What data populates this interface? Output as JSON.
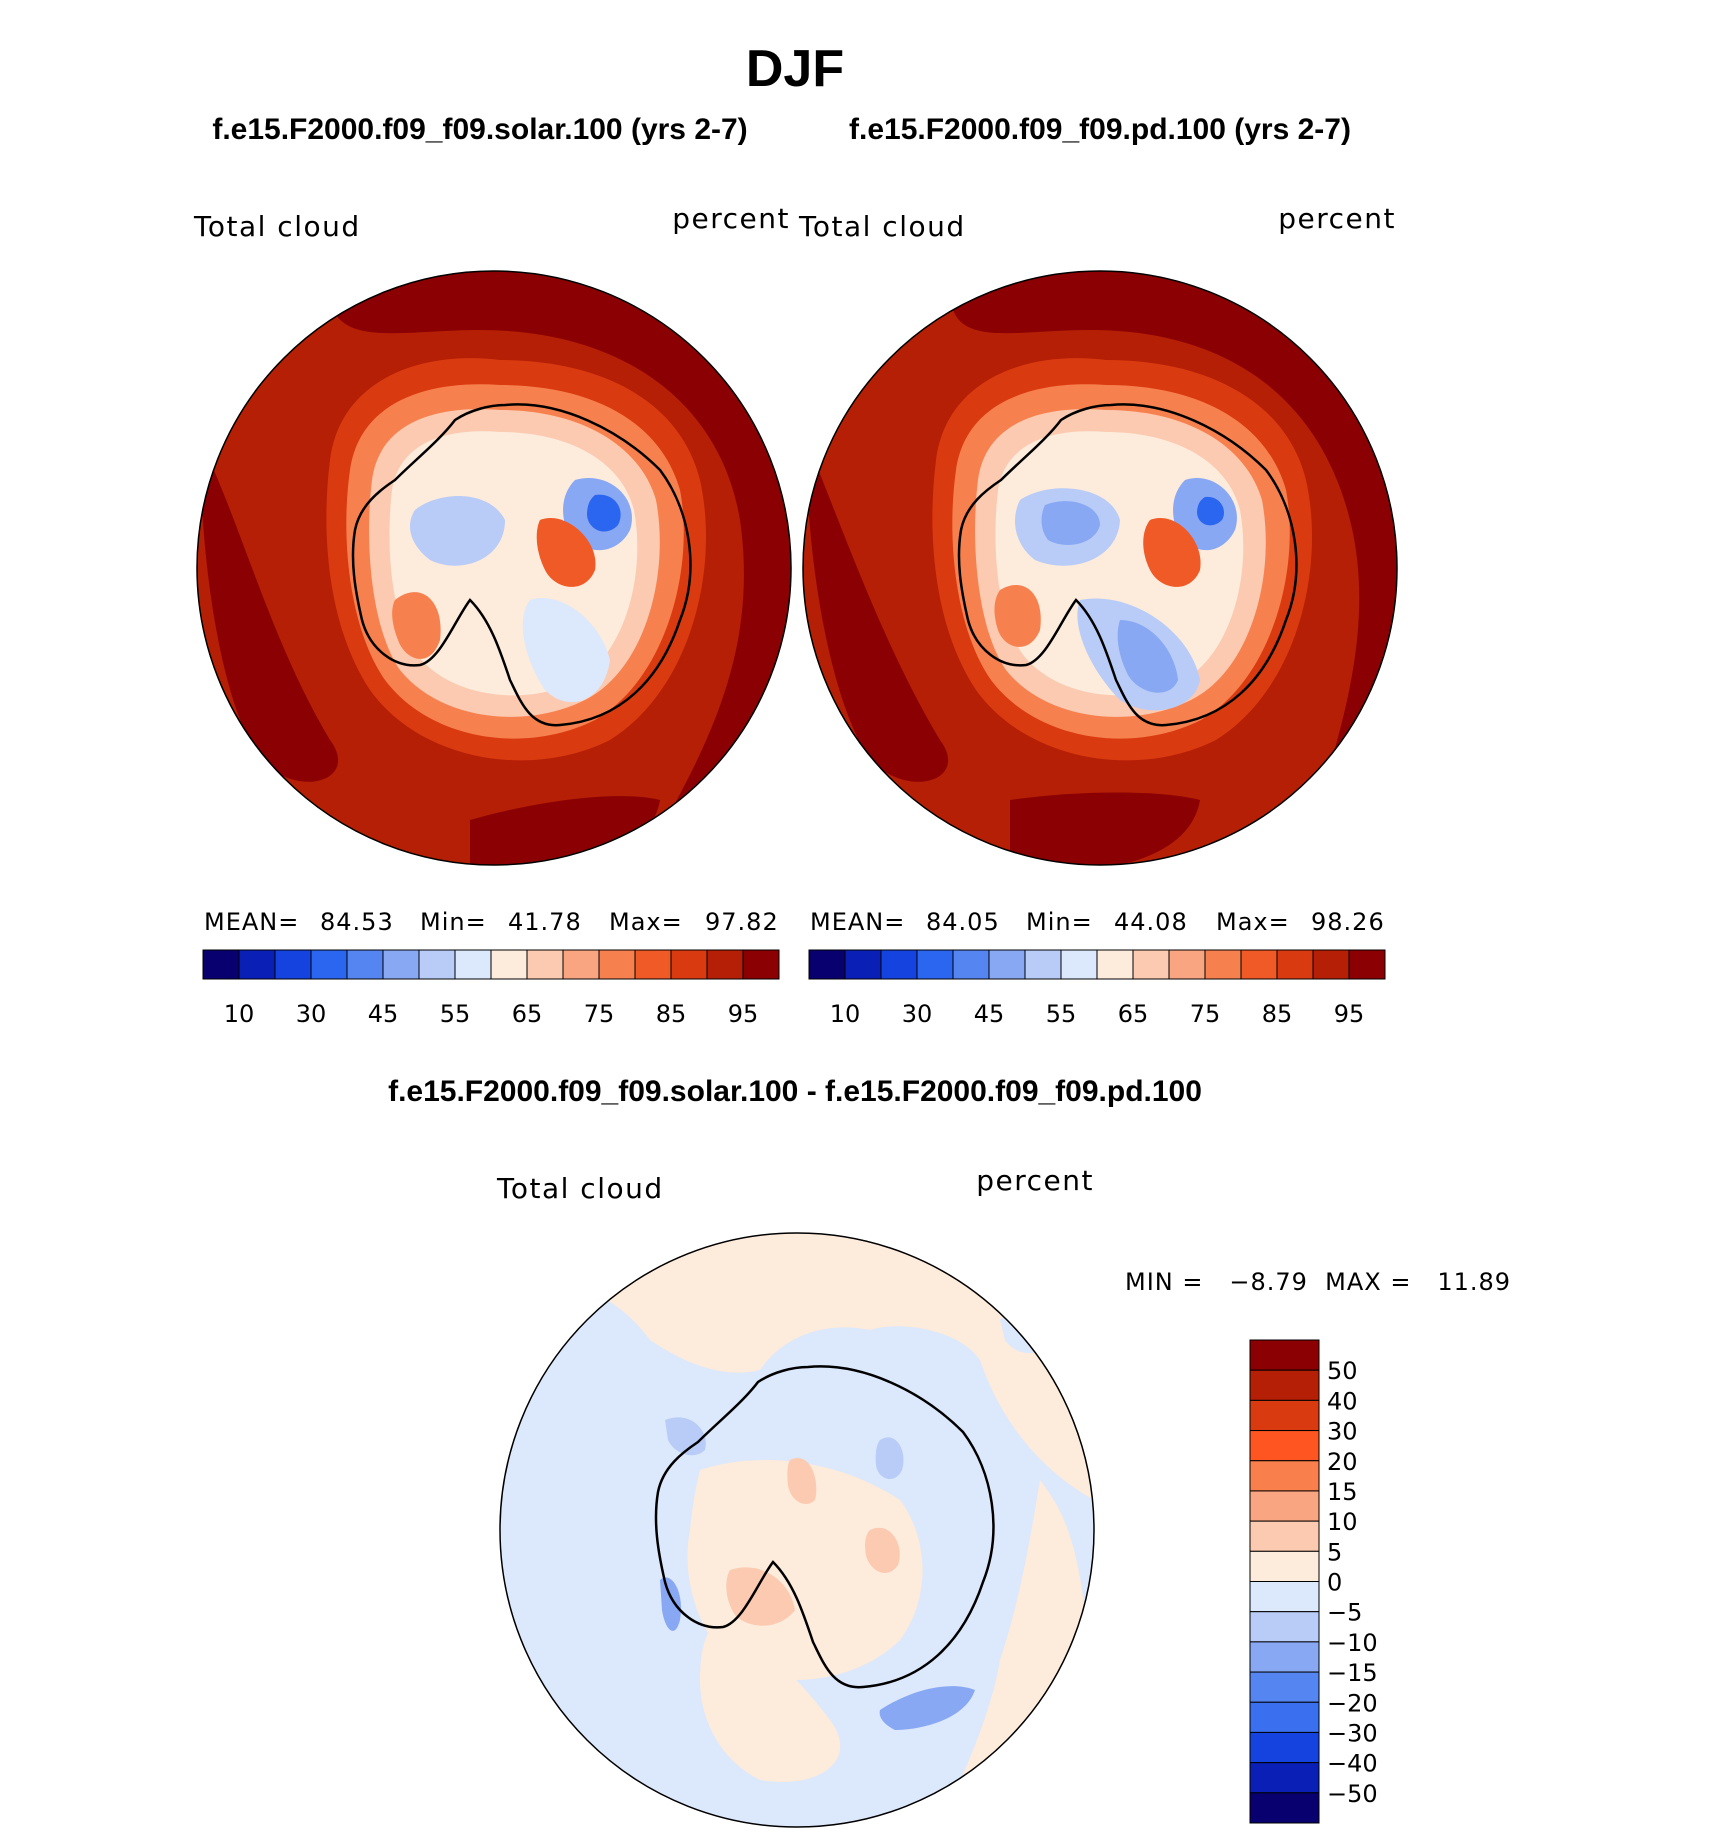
{
  "title": "DJF",
  "panel_left": {
    "case": "f.e15.F2000.f09_f09.solar.100 (yrs 2-7)",
    "variable": "Total cloud",
    "units": "percent",
    "mean_label": "MEAN=",
    "mean": "84.53",
    "min_label": "Min=",
    "min": "41.78",
    "max_label": "Max=",
    "max": "97.82"
  },
  "panel_right": {
    "case": "f.e15.F2000.f09_f09.pd.100 (yrs 2-7)",
    "variable": "Total cloud",
    "units": "percent",
    "mean_label": "MEAN=",
    "mean": "84.05",
    "min_label": "Min=",
    "min": "44.08",
    "max_label": "Max=",
    "max": "98.26"
  },
  "panel_diff": {
    "case": "f.e15.F2000.f09_f09.solar.100 - f.e15.F2000.f09_f09.pd.100",
    "variable": "Total cloud",
    "units": "percent",
    "minmax_text": "MIN =   −8.79  MAX =   11.89"
  },
  "chart_data": [
    {
      "type": "heatmap",
      "projection": "south polar stereographic",
      "title": "f.e15.F2000.f09_f09.solar.100 (yrs 2-7)",
      "variable": "Total cloud",
      "units": "percent",
      "mean": 84.53,
      "min": 41.78,
      "max": 97.82,
      "colorbar_tick_labels": [
        "10",
        "30",
        "45",
        "55",
        "65",
        "75",
        "85",
        "95"
      ],
      "colorbar_colors": [
        "#08006e",
        "#0a1fb5",
        "#1543e0",
        "#2b66f0",
        "#5585f0",
        "#89a8f4",
        "#b8ccf7",
        "#dce8fb",
        "#fdebdc",
        "#fccab0",
        "#f9a582",
        "#f7804f",
        "#ef5a26",
        "#da3a0f",
        "#b51f06",
        "#8b0002"
      ]
    },
    {
      "type": "heatmap",
      "projection": "south polar stereographic",
      "title": "f.e15.F2000.f09_f09.pd.100 (yrs 2-7)",
      "variable": "Total cloud",
      "units": "percent",
      "mean": 84.05,
      "min": 44.08,
      "max": 98.26,
      "colorbar_tick_labels": [
        "10",
        "30",
        "45",
        "55",
        "65",
        "75",
        "85",
        "95"
      ],
      "colorbar_colors": [
        "#08006e",
        "#0a1fb5",
        "#1543e0",
        "#2b66f0",
        "#5585f0",
        "#89a8f4",
        "#b8ccf7",
        "#dce8fb",
        "#fdebdc",
        "#fccab0",
        "#f9a582",
        "#f7804f",
        "#ef5a26",
        "#da3a0f",
        "#b51f06",
        "#8b0002"
      ]
    },
    {
      "type": "heatmap",
      "projection": "south polar stereographic",
      "title": "f.e15.F2000.f09_f09.solar.100 - f.e15.F2000.f09_f09.pd.100",
      "variable": "Total cloud",
      "units": "percent",
      "min": -8.79,
      "max": 11.89,
      "colorbar_tick_labels": [
        "50",
        "40",
        "30",
        "20",
        "15",
        "10",
        "5",
        "0",
        "−5",
        "−10",
        "−15",
        "−20",
        "−30",
        "−40",
        "−50"
      ],
      "colorbar_colors": [
        "#8b0002",
        "#b51f06",
        "#da3a0f",
        "#ff5521",
        "#f9804c",
        "#f9a582",
        "#fccab0",
        "#fdebdc",
        "#dce8fb",
        "#b8ccf7",
        "#89a8f4",
        "#5585f0",
        "#3a6ff0",
        "#1543e0",
        "#0a1fb5",
        "#08006e"
      ]
    }
  ]
}
